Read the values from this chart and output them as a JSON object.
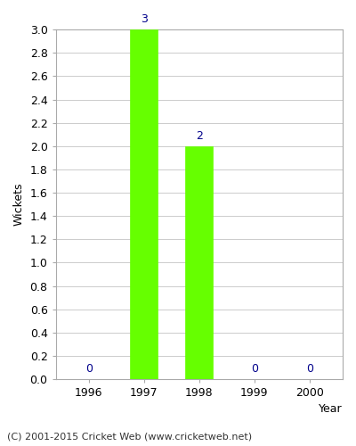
{
  "years": [
    1996,
    1997,
    1998,
    1999,
    2000
  ],
  "wickets": [
    0,
    3,
    2,
    0,
    0
  ],
  "bar_color": "#66ff00",
  "bar_edge_color": "#66ff00",
  "label_color": "#00008b",
  "xlabel": "Year",
  "ylabel": "Wickets",
  "ylim": [
    0,
    3.0
  ],
  "background_color": "#ffffff",
  "plot_bg_color": "#ffffff",
  "footer": "(C) 2001-2015 Cricket Web (www.cricketweb.net)",
  "bar_width": 0.5,
  "grid_color": "#cccccc",
  "spine_color": "#aaaaaa",
  "tick_color": "#555555",
  "xlabel_fontsize": 9,
  "ylabel_fontsize": 9,
  "tick_fontsize": 9,
  "label_fontsize": 9,
  "footer_fontsize": 8
}
